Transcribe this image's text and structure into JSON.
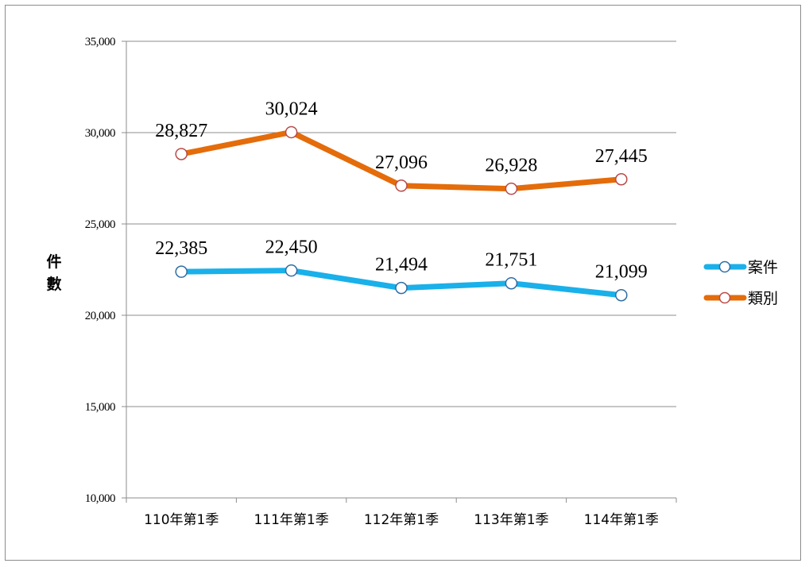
{
  "chart_data": {
    "type": "line",
    "ylabel": "件數",
    "ylim": [
      10000,
      35000
    ],
    "yticks": [
      10000,
      15000,
      20000,
      25000,
      30000,
      35000
    ],
    "ytick_labels": [
      "10,000",
      "15,000",
      "20,000",
      "25,000",
      "30,000",
      "35,000"
    ],
    "categories": [
      "110年第1季",
      "111年第1季",
      "112年第1季",
      "113年第1季",
      "114年第1季"
    ],
    "grid": true,
    "legend_position": "right",
    "series": [
      {
        "name": "案件",
        "color": "#1ab0ea",
        "values": [
          22385,
          22450,
          21494,
          21751,
          21099
        ],
        "labels": [
          "22,385",
          "22,450",
          "21,494",
          "21,751",
          "21,099"
        ]
      },
      {
        "name": "類別",
        "color": "#e46c0a",
        "values": [
          28827,
          30024,
          27096,
          26928,
          27445
        ],
        "labels": [
          "28,827",
          "30,024",
          "27,096",
          "26,928",
          "27,445"
        ]
      }
    ]
  }
}
